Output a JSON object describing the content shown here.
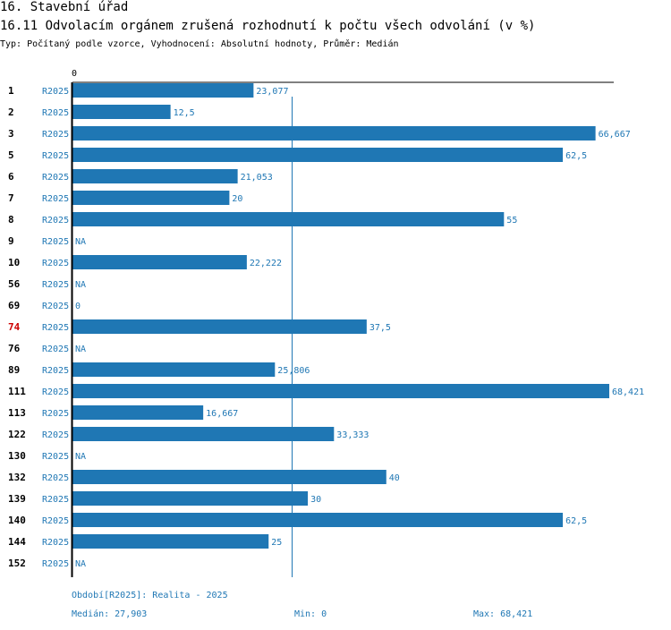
{
  "header": {
    "section": "16. Stavební úřad",
    "title": "16.11 Odvolacím orgánem zrušená rozhodnutí k počtu všech odvolání (v %)",
    "subtitle": "Typ: Počítaný podle vzorce, Vyhodnocení: Absolutní hodnoty, Průměr: Medián"
  },
  "colors": {
    "bar": "#1f77b4",
    "label": "#1f77b4",
    "highlight": "#cc0000",
    "axis": "#000000"
  },
  "chart_data": {
    "type": "bar",
    "orientation": "horizontal",
    "axis_zero_label": "0",
    "series_label": "R2025",
    "xlim": [
      0,
      68.421
    ],
    "median": 27.903,
    "highlight_id": "74",
    "rows": [
      {
        "id": "1",
        "series": "R2025",
        "value": 23.077,
        "label": "23,077"
      },
      {
        "id": "2",
        "series": "R2025",
        "value": 12.5,
        "label": "12,5"
      },
      {
        "id": "3",
        "series": "R2025",
        "value": 66.667,
        "label": "66,667"
      },
      {
        "id": "5",
        "series": "R2025",
        "value": 62.5,
        "label": "62,5"
      },
      {
        "id": "6",
        "series": "R2025",
        "value": 21.053,
        "label": "21,053"
      },
      {
        "id": "7",
        "series": "R2025",
        "value": 20,
        "label": "20"
      },
      {
        "id": "8",
        "series": "R2025",
        "value": 55,
        "label": "55"
      },
      {
        "id": "9",
        "series": "R2025",
        "value": null,
        "label": "NA"
      },
      {
        "id": "10",
        "series": "R2025",
        "value": 22.222,
        "label": "22,222"
      },
      {
        "id": "56",
        "series": "R2025",
        "value": null,
        "label": "NA"
      },
      {
        "id": "69",
        "series": "R2025",
        "value": 0,
        "label": "0"
      },
      {
        "id": "74",
        "series": "R2025",
        "value": 37.5,
        "label": "37,5"
      },
      {
        "id": "76",
        "series": "R2025",
        "value": null,
        "label": "NA"
      },
      {
        "id": "89",
        "series": "R2025",
        "value": 25.806,
        "label": "25,806"
      },
      {
        "id": "111",
        "series": "R2025",
        "value": 68.421,
        "label": "68,421"
      },
      {
        "id": "113",
        "series": "R2025",
        "value": 16.667,
        "label": "16,667"
      },
      {
        "id": "122",
        "series": "R2025",
        "value": 33.333,
        "label": "33,333"
      },
      {
        "id": "130",
        "series": "R2025",
        "value": null,
        "label": "NA"
      },
      {
        "id": "132",
        "series": "R2025",
        "value": 40,
        "label": "40"
      },
      {
        "id": "139",
        "series": "R2025",
        "value": 30,
        "label": "30"
      },
      {
        "id": "140",
        "series": "R2025",
        "value": 62.5,
        "label": "62,5"
      },
      {
        "id": "144",
        "series": "R2025",
        "value": 25,
        "label": "25"
      },
      {
        "id": "152",
        "series": "R2025",
        "value": null,
        "label": "NA"
      }
    ]
  },
  "footer": {
    "period": "Období[R2025]: Realita - 2025",
    "median": "Medián: 27,903",
    "min": "Min: 0",
    "max": "Max: 68,421"
  }
}
